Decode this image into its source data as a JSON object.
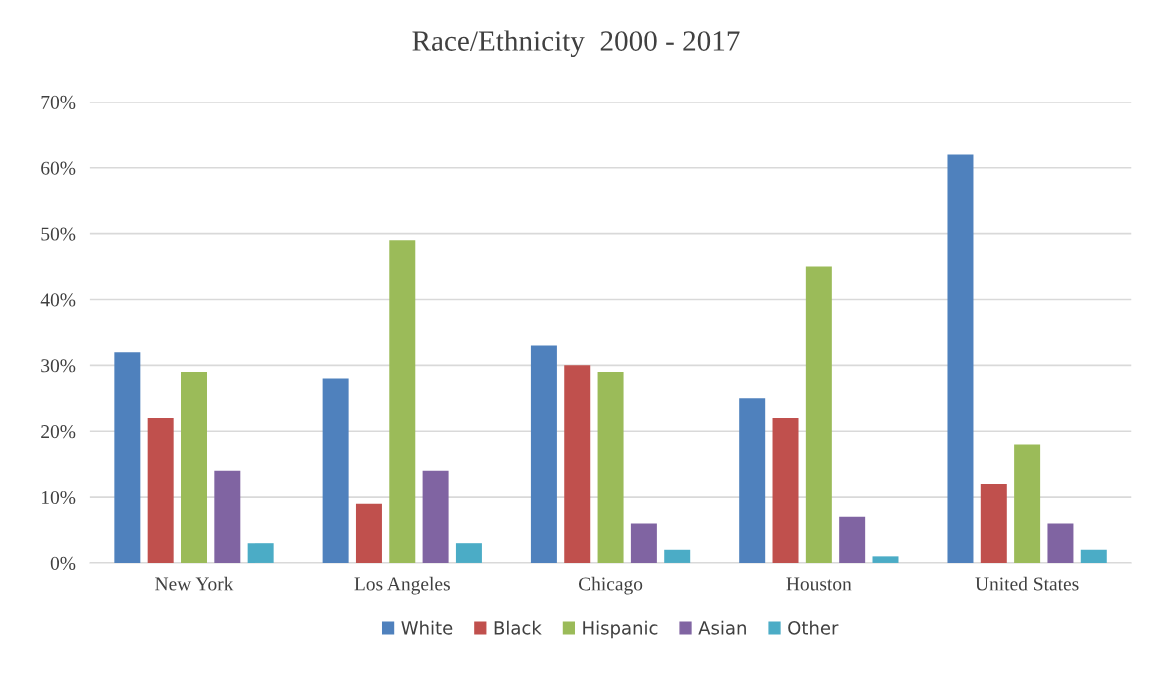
{
  "chart_data": {
    "type": "bar",
    "title": "Race/Ethnicity  2000 - 2017",
    "categories": [
      "New York",
      "Los Angeles",
      "Chicago",
      "Houston",
      "United States"
    ],
    "series": [
      {
        "name": "White",
        "color": "#4f81bd",
        "values": [
          32,
          28,
          33,
          25,
          62
        ]
      },
      {
        "name": "Black",
        "color": "#c0504d",
        "values": [
          22,
          9,
          30,
          22,
          12
        ]
      },
      {
        "name": "Hispanic",
        "color": "#9bbb59",
        "values": [
          29,
          49,
          29,
          45,
          18
        ]
      },
      {
        "name": "Asian",
        "color": "#8064a2",
        "values": [
          14,
          14,
          6,
          7,
          6
        ]
      },
      {
        "name": "Other",
        "color": "#4bacc6",
        "values": [
          3,
          3,
          2,
          1,
          2
        ]
      }
    ],
    "ylim": [
      0,
      70
    ],
    "yticks": [
      {
        "value": 0,
        "label": "0%"
      },
      {
        "value": 10,
        "label": "10%"
      },
      {
        "value": 20,
        "label": "20%"
      },
      {
        "value": 30,
        "label": "30%"
      },
      {
        "value": 40,
        "label": "40%"
      },
      {
        "value": 50,
        "label": "50%"
      },
      {
        "value": 60,
        "label": "60%"
      },
      {
        "value": 70,
        "label": "70%"
      }
    ],
    "grid": "y",
    "legend": "bottom"
  }
}
